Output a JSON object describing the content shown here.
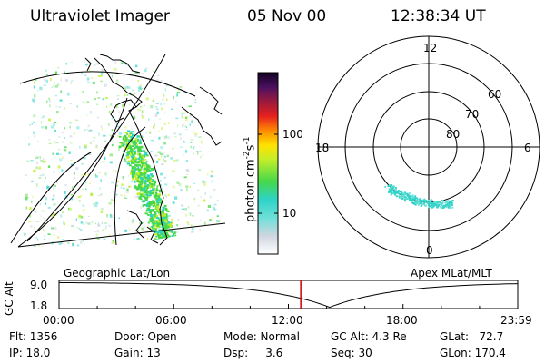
{
  "header": {
    "instrument": "Ultraviolet Imager",
    "date": "05 Nov 00",
    "time": "12:38:34 UT"
  },
  "colorbar": {
    "unit_label": "photon cm",
    "unit_exp1": "-2",
    "unit_mid": "s",
    "unit_exp2": "-1",
    "tick_high": "100",
    "tick_low": "10"
  },
  "geographic_panel": {
    "label": "Geographic Lat/Lon"
  },
  "polar_panel": {
    "label": "Apex MLat/MLT",
    "mlt_top": "12",
    "mlt_left": "18",
    "mlt_right": "6",
    "mlt_bottom": "0",
    "lat_rings": [
      "60",
      "70",
      "80"
    ]
  },
  "altitude_plot": {
    "ylabel": "GC Alt",
    "y_top": "9.0",
    "y_bottom": "1.8",
    "x_ticks": [
      "00:00",
      "06:00",
      "12:00",
      "18:00",
      "23:59"
    ],
    "current_time_fraction": 0.527,
    "marker_color": "#cc0000"
  },
  "info": {
    "flt": "Flt: 1356",
    "ip": "IP: 18.0",
    "door": "Door: Open",
    "gain": "Gain: 13",
    "mode": "Mode: Normal",
    "dsp": "Dsp:     3.6",
    "gc_alt": "GC Alt: 4.3 Re",
    "seq": "Seq: 30",
    "glat": "GLat:   72.7",
    "glon": "GLon: 170.4"
  }
}
